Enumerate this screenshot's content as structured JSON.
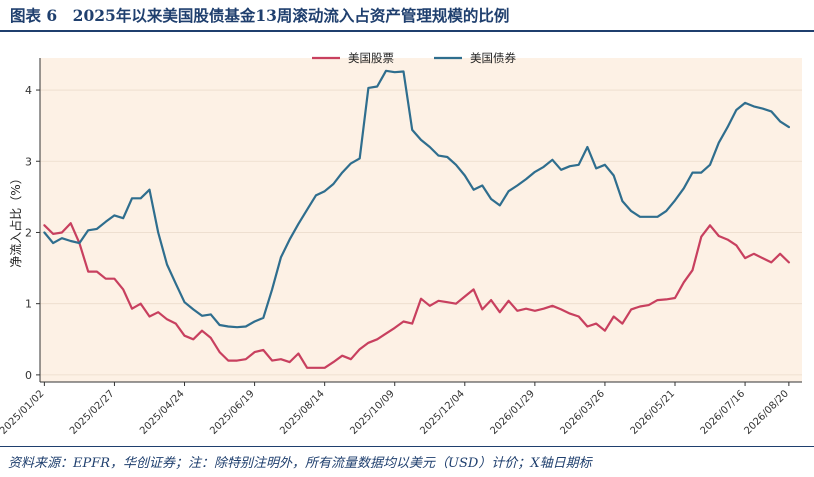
{
  "header": {
    "title": "图表 6　2025年以来美国股债基金13周滚动流入占资产管理规模的比例"
  },
  "footer": {
    "source": "资料来源：EPFR，华创证券；注：除特别注明外，所有流量数据均以美元（USD）计价；X轴日期标"
  },
  "chart_data": {
    "type": "line",
    "title": "",
    "xlabel": "",
    "ylabel": "净流入占比（%）",
    "ylim": [
      -0.1,
      4.45
    ],
    "yticks": [
      0,
      1,
      2,
      3,
      4
    ],
    "grid": true,
    "legend_position": "top-center",
    "x_tick_labels": [
      "2025/01/02",
      "2025/02/27",
      "2025/04/24",
      "2025/06/19",
      "2025/08/14",
      "2025/10/09",
      "2025/12/04",
      "2026/01/29",
      "2026/03/26",
      "2026/05/21",
      "2026/07/16",
      "2026/08/20"
    ],
    "x_tick_positions": [
      0,
      8,
      16,
      24,
      32,
      40,
      48,
      56,
      64,
      72,
      80,
      85
    ],
    "x_range": [
      -0.5,
      86.5
    ],
    "series": [
      {
        "name": "美国股票",
        "color": "#c8405f",
        "values": [
          2.1,
          1.98,
          2.0,
          2.13,
          1.85,
          1.45,
          1.45,
          1.35,
          1.35,
          1.2,
          0.93,
          1.0,
          0.82,
          0.88,
          0.78,
          0.72,
          0.55,
          0.5,
          0.62,
          0.52,
          0.32,
          0.2,
          0.2,
          0.22,
          0.32,
          0.35,
          0.2,
          0.22,
          0.18,
          0.3,
          0.1,
          0.1,
          0.1,
          0.18,
          0.27,
          0.22,
          0.36,
          0.45,
          0.5,
          0.58,
          0.66,
          0.75,
          0.72,
          1.07,
          0.97,
          1.04,
          1.02,
          1.0,
          1.1,
          1.2,
          0.92,
          1.05,
          0.88,
          1.04,
          0.9,
          0.93,
          0.9,
          0.93,
          0.97,
          0.92,
          0.86,
          0.82,
          0.68,
          0.72,
          0.62,
          0.82,
          0.72,
          0.92,
          0.96,
          0.98,
          1.05,
          1.06,
          1.08,
          1.3,
          1.47,
          1.94,
          2.1,
          1.95,
          1.9,
          1.82,
          1.64,
          1.7,
          1.64,
          1.58,
          1.7,
          1.58
        ]
      },
      {
        "name": "美国债券",
        "color": "#2f6e8e",
        "values": [
          2.0,
          1.85,
          1.92,
          1.88,
          1.85,
          2.03,
          2.05,
          2.15,
          2.24,
          2.2,
          2.48,
          2.48,
          2.6,
          2.0,
          1.55,
          1.28,
          1.02,
          0.92,
          0.83,
          0.85,
          0.7,
          0.68,
          0.67,
          0.68,
          0.75,
          0.8,
          1.2,
          1.65,
          1.9,
          2.12,
          2.32,
          2.52,
          2.58,
          2.68,
          2.84,
          2.97,
          3.04,
          4.03,
          4.05,
          4.27,
          4.25,
          4.26,
          3.44,
          3.3,
          3.2,
          3.08,
          3.06,
          2.95,
          2.8,
          2.6,
          2.66,
          2.47,
          2.38,
          2.58,
          2.66,
          2.75,
          2.85,
          2.92,
          3.02,
          2.88,
          2.93,
          2.95,
          3.2,
          2.9,
          2.95,
          2.8,
          2.44,
          2.3,
          2.22,
          2.22,
          2.22,
          2.3,
          2.45,
          2.62,
          2.84,
          2.84,
          2.95,
          3.26,
          3.48,
          3.72,
          3.82,
          3.77,
          3.74,
          3.7,
          3.56,
          3.48
        ]
      }
    ]
  }
}
